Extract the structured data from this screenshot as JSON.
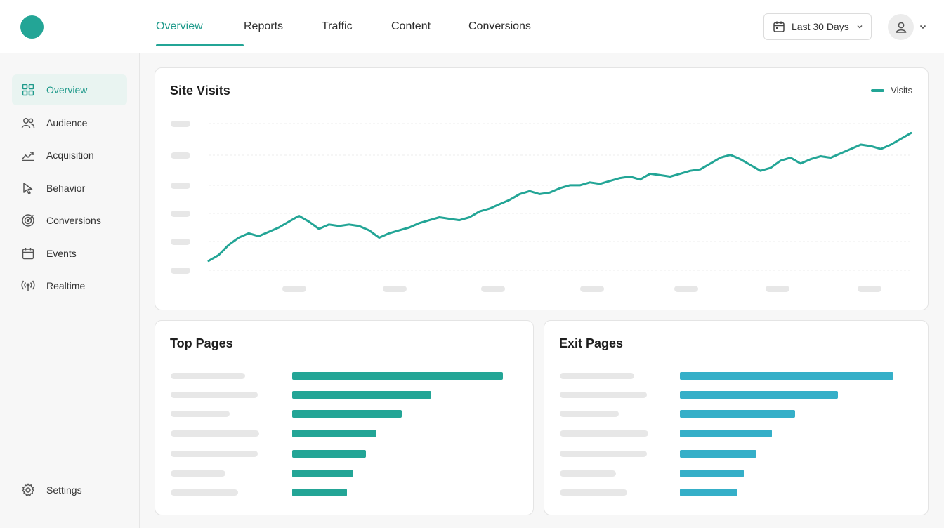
{
  "header": {
    "tabs": [
      {
        "label": "Overview",
        "active": true
      },
      {
        "label": "Reports",
        "active": false
      },
      {
        "label": "Traffic",
        "active": false
      },
      {
        "label": "Content",
        "active": false
      },
      {
        "label": "Conversions",
        "active": false
      }
    ],
    "date_range": "Last 30 Days",
    "date_icon": "calendar-icon",
    "avatar_icon": "user-icon"
  },
  "sidebar": {
    "items": [
      {
        "label": "Overview",
        "icon": "grid-icon",
        "active": true
      },
      {
        "label": "Audience",
        "icon": "users-icon"
      },
      {
        "label": "Acquisition",
        "icon": "trend-icon"
      },
      {
        "label": "Behavior",
        "icon": "cursor-icon"
      },
      {
        "label": "Conversions",
        "icon": "target-icon"
      },
      {
        "label": "Events",
        "icon": "calendar-icon"
      },
      {
        "label": "Realtime",
        "icon": "broadcast-icon"
      }
    ],
    "settings": {
      "label": "Settings",
      "icon": "gear-icon"
    }
  },
  "colors": {
    "accent": "#23a596",
    "exit_bar": "#35afc8",
    "placeholder": "#e7e7e7"
  },
  "visits_card": {
    "title": "Site Visits",
    "legend": "Visits"
  },
  "top_pages": {
    "title": "Top Pages"
  },
  "exit_pages": {
    "title": "Exit Pages"
  },
  "chart_data": [
    {
      "type": "line",
      "title": "Site Visits",
      "series": [
        {
          "name": "Visits",
          "values": [
            0.06,
            0.1,
            0.17,
            0.22,
            0.25,
            0.23,
            0.26,
            0.29,
            0.33,
            0.37,
            0.33,
            0.28,
            0.31,
            0.3,
            0.31,
            0.3,
            0.27,
            0.22,
            0.25,
            0.27,
            0.29,
            0.32,
            0.34,
            0.36,
            0.35,
            0.34,
            0.36,
            0.4,
            0.42,
            0.45,
            0.48,
            0.52,
            0.54,
            0.52,
            0.53,
            0.56,
            0.58,
            0.58,
            0.6,
            0.59,
            0.61,
            0.63,
            0.64,
            0.62,
            0.66,
            0.65,
            0.64,
            0.66,
            0.68,
            0.69,
            0.73,
            0.77,
            0.79,
            0.76,
            0.72,
            0.68,
            0.7,
            0.75,
            0.77,
            0.73,
            0.76,
            0.78,
            0.77,
            0.8,
            0.83,
            0.86,
            0.85,
            0.83,
            0.86,
            0.9,
            0.94
          ]
        }
      ],
      "ylim": [
        0,
        1
      ],
      "grid": true,
      "legend_position": "top-right"
    },
    {
      "type": "bar",
      "title": "Top Pages",
      "orientation": "horizontal",
      "values": [
        100,
        66,
        52,
        40,
        35,
        29,
        26
      ]
    },
    {
      "type": "bar",
      "title": "Exit Pages",
      "orientation": "horizontal",
      "values": [
        100,
        74,
        54,
        43,
        36,
        30,
        27
      ]
    }
  ]
}
